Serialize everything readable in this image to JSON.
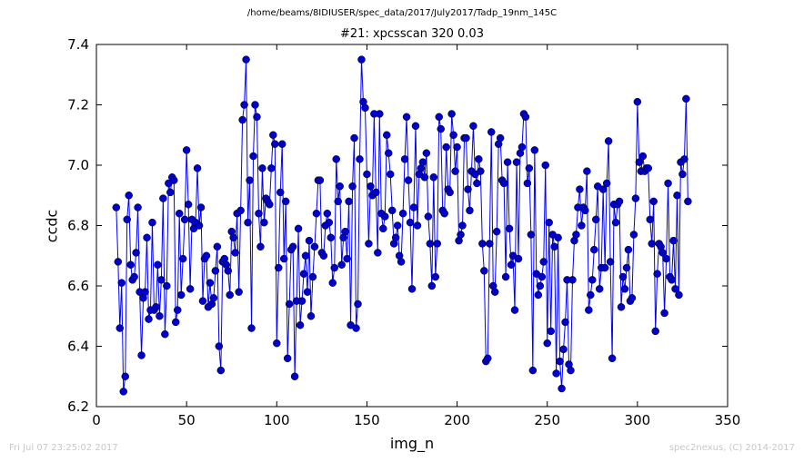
{
  "suptitle": "/home/beams/8IDIUSER/spec_data/2017/July2017/Tadp_19nm_145C",
  "footer": {
    "left": "Fri Jul 07 23:25:02 2017",
    "right": "spec2nexus, (C) 2014-2017"
  },
  "colors": {
    "series": "#0000ff",
    "point": "#0000cc",
    "axes": "#000000"
  },
  "chart_data": {
    "type": "line",
    "title": "#21: xpcsscan 320 0.03",
    "xlabel": "img_n",
    "ylabel": "ccdc",
    "xlim": [
      0,
      350
    ],
    "ylim": [
      6.2,
      7.4
    ],
    "xticks": [
      "0",
      "50",
      "100",
      "150",
      "200",
      "250",
      "300",
      "350"
    ],
    "yticks": [
      "6.2",
      "6.4",
      "6.6",
      "6.8",
      "7.0",
      "7.2",
      "7.4"
    ],
    "grid": false,
    "legend": "none",
    "x_start": 11,
    "x_step": 1,
    "y": [
      6.86,
      6.68,
      6.46,
      6.61,
      6.25,
      6.3,
      6.82,
      6.9,
      6.67,
      6.62,
      6.63,
      6.71,
      6.86,
      6.58,
      6.37,
      6.56,
      6.58,
      6.76,
      6.49,
      6.52,
      6.81,
      6.52,
      6.53,
      6.67,
      6.5,
      6.62,
      6.89,
      6.44,
      6.6,
      6.94,
      6.91,
      6.96,
      6.95,
      6.48,
      6.52,
      6.84,
      6.57,
      6.69,
      6.82,
      7.05,
      6.87,
      6.59,
      6.82,
      6.79,
      6.81,
      6.99,
      6.8,
      6.86,
      6.55,
      6.69,
      6.7,
      6.53,
      6.61,
      6.54,
      6.56,
      6.65,
      6.73,
      6.4,
      6.32,
      6.68,
      6.69,
      6.67,
      6.65,
      6.57,
      6.78,
      6.76,
      6.71,
      6.84,
      6.58,
      6.85,
      7.15,
      7.2,
      7.35,
      6.81,
      6.95,
      6.46,
      7.03,
      7.2,
      7.16,
      6.84,
      6.73,
      6.99,
      6.81,
      6.89,
      6.88,
      6.87,
      6.99,
      7.1,
      7.07,
      6.41,
      6.66,
      6.91,
      7.07,
      6.69,
      6.88,
      6.36,
      6.54,
      6.72,
      6.73,
      6.3,
      6.55,
      6.79,
      6.47,
      6.55,
      6.64,
      6.7,
      6.58,
      6.75,
      6.5,
      6.63,
      6.73,
      6.84,
      6.95,
      6.95,
      6.71,
      6.7,
      6.8,
      6.84,
      6.81,
      6.76,
      6.61,
      6.66,
      7.02,
      6.88,
      6.93,
      6.67,
      6.76,
      6.78,
      6.69,
      6.88,
      6.47,
      6.93,
      7.09,
      6.46,
      6.54,
      7.02,
      7.35,
      7.21,
      7.19,
      6.97,
      6.74,
      6.93,
      6.9,
      7.17,
      6.91,
      6.71,
      7.17,
      6.84,
      6.79,
      6.83,
      7.1,
      7.04,
      6.97,
      6.85,
      6.74,
      6.76,
      6.8,
      6.7,
      6.68,
      6.84,
      7.02,
      7.16,
      6.95,
      6.81,
      6.59,
      6.86,
      7.13,
      6.8,
      6.97,
      6.99,
      7.01,
      6.96,
      7.04,
      6.83,
      6.74,
      6.6,
      6.96,
      6.63,
      6.74,
      7.16,
      7.12,
      6.85,
      6.84,
      7.06,
      6.92,
      6.91,
      7.17,
      7.1,
      6.98,
      7.06,
      6.75,
      6.77,
      6.8,
      7.09,
      7.09,
      6.92,
      6.85,
      6.98,
      7.13,
      6.97,
      6.94,
      7.02,
      6.98,
      6.74,
      6.65,
      6.35,
      6.36,
      6.74,
      7.11,
      6.6,
      6.58,
      6.78,
      7.07,
      7.09,
      6.95,
      6.94,
      6.63,
      7.01,
      6.79,
      6.67,
      6.7,
      6.52,
      7.01,
      6.69,
      7.04,
      7.06,
      7.17,
      7.16,
      6.94,
      6.99,
      6.77,
      6.32,
      7.05,
      6.64,
      6.57,
      6.6,
      6.63,
      6.68,
      7,
      6.41,
      6.81,
      6.45,
      6.77,
      6.73,
      6.31,
      6.76,
      6.35,
      6.26,
      6.39,
      6.48,
      6.62,
      6.34,
      6.32,
      6.62,
      6.75,
      6.77,
      6.86,
      6.92,
      6.8,
      6.86,
      6.85,
      6.98,
      6.52,
      6.57,
      6.62,
      6.72,
      6.82,
      6.93,
      6.59,
      6.66,
      6.92,
      6.66,
      6.94,
      7.08,
      6.68,
      6.36,
      6.87,
      6.81,
      6.87,
      6.88,
      6.53,
      6.63,
      6.59,
      6.66,
      6.72,
      6.55,
      6.56,
      6.77,
      6.89,
      7.21,
      7.01,
      6.98,
      7.03,
      6.98,
      6.99,
      6.99,
      6.82,
      6.74,
      6.88,
      6.45,
      6.64,
      6.74,
      6.73,
      6.71,
      6.51,
      6.69,
      6.94,
      6.63,
      6.62,
      6.75,
      6.59,
      6.9,
      6.57,
      7.01,
      6.97,
      7.02,
      7.22,
      6.88
    ]
  }
}
